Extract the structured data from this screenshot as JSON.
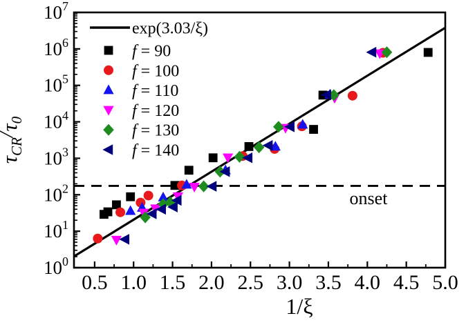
{
  "figure": {
    "background": "#ffffff",
    "frame_color": "#000000"
  },
  "chart_data": {
    "type": "scatter",
    "title": "",
    "xlabel": "1/ξ",
    "ylabel_parts": {
      "tau1": "τ",
      "sub1": "CR",
      "slash": "/",
      "tau2": "τ",
      "sub2": "0"
    },
    "x_axis": {
      "scale": "linear",
      "min": 0.235,
      "max": 5.0,
      "major_ticks": [
        0.5,
        1.0,
        1.5,
        2.0,
        2.5,
        3.0,
        3.5,
        4.0,
        4.5,
        5.0
      ],
      "tick_labels": [
        "0.5",
        "1.0",
        "1.5",
        "2.0",
        "2.5",
        "3.0",
        "3.5",
        "4.0",
        "4.5",
        "5.0"
      ],
      "minor_ticks": [
        0.75,
        1.25,
        1.75,
        2.25,
        2.75,
        3.25,
        3.75,
        4.25,
        4.75
      ]
    },
    "y_axis": {
      "scale": "log",
      "min": 1,
      "max": 10000000,
      "major_exponents": [
        0,
        1,
        2,
        3,
        4,
        5,
        6,
        7
      ],
      "tick_label_base": "10"
    },
    "grid": "off",
    "legend_position": "top-left-inside",
    "fit_line": {
      "label": "exp(3.03/ξ)",
      "coefficient": 3.03,
      "color": "#000000",
      "style": "solid"
    },
    "onset_line": {
      "label": "onset",
      "y": 175,
      "color": "#000000",
      "style": "dashed"
    },
    "series": [
      {
        "name_symbol": "f",
        "name_value": "90",
        "marker": "square",
        "color": "#000000",
        "points": [
          [
            0.62,
            29
          ],
          [
            0.67,
            34
          ],
          [
            0.78,
            53
          ],
          [
            0.96,
            88
          ],
          [
            1.53,
            180
          ],
          [
            1.71,
            470
          ],
          [
            2.02,
            1030
          ],
          [
            2.48,
            2100
          ],
          [
            3.31,
            6200
          ],
          [
            3.43,
            54000
          ],
          [
            4.78,
            800000
          ]
        ]
      },
      {
        "name_symbol": "f",
        "name_value": "100",
        "marker": "circle",
        "color": "#E8191D",
        "points": [
          [
            0.54,
            6.3
          ],
          [
            0.83,
            33
          ],
          [
            1.09,
            61
          ],
          [
            1.19,
            95
          ],
          [
            1.62,
            180
          ],
          [
            2.4,
            1150
          ],
          [
            2.81,
            1800
          ],
          [
            3.16,
            7500
          ],
          [
            3.81,
            52000
          ],
          [
            4.2,
            780000
          ]
        ]
      },
      {
        "name_symbol": "f",
        "name_value": "110",
        "marker": "triangle-up",
        "color": "#1414F0",
        "points": [
          [
            0.96,
            36
          ],
          [
            1.11,
            44
          ],
          [
            1.38,
            85
          ],
          [
            1.68,
            190
          ],
          [
            2.18,
            470
          ],
          [
            2.82,
            2100
          ],
          [
            3.17,
            8400
          ],
          [
            3.52,
            56000
          ]
        ]
      },
      {
        "name_symbol": "f",
        "name_value": "120",
        "marker": "triangle-down",
        "color": "#FF00FF",
        "points": [
          [
            0.78,
            5.8
          ],
          [
            1.13,
            32
          ],
          [
            1.28,
            42
          ],
          [
            1.57,
            90
          ],
          [
            1.78,
            165
          ],
          [
            2.21,
            1050
          ],
          [
            2.95,
            6800
          ],
          [
            3.58,
            45000
          ],
          [
            4.16,
            750000
          ]
        ]
      },
      {
        "name_symbol": "f",
        "name_value": "130",
        "marker": "diamond",
        "color": "#1F8C1F",
        "points": [
          [
            1.15,
            24
          ],
          [
            1.38,
            55
          ],
          [
            1.47,
            62
          ],
          [
            1.9,
            170
          ],
          [
            2.11,
            430
          ],
          [
            2.36,
            1100
          ],
          [
            2.61,
            2000
          ],
          [
            2.86,
            7300
          ],
          [
            3.57,
            54000
          ],
          [
            4.25,
            810000
          ]
        ]
      },
      {
        "name_symbol": "f",
        "name_value": "140",
        "marker": "triangle-left",
        "color": "#00007E",
        "points": [
          [
            0.89,
            6.0
          ],
          [
            1.24,
            30
          ],
          [
            1.36,
            40
          ],
          [
            1.51,
            46
          ],
          [
            1.56,
            70
          ],
          [
            2.01,
            170
          ],
          [
            2.18,
            430
          ],
          [
            2.47,
            1030
          ],
          [
            2.73,
            2250
          ],
          [
            3.01,
            7300
          ],
          [
            3.48,
            55000
          ],
          [
            4.06,
            810000
          ]
        ]
      }
    ]
  }
}
